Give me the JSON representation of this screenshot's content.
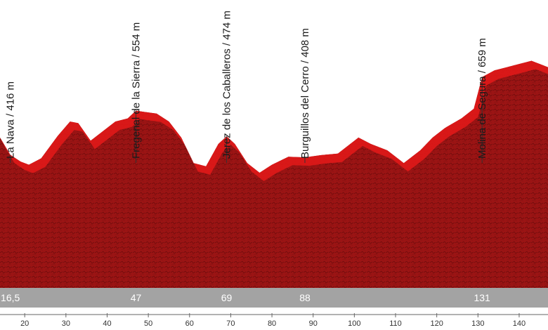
{
  "colors": {
    "profile_body": "#9b1414",
    "profile_top": "#e01818",
    "profile_dark": "#5e0a0a",
    "distance_bar": "#a3a3a3",
    "distance_text": "#ffffff",
    "marker_line": "#333333",
    "text": "#1a1a1a"
  },
  "chart_data": {
    "type": "area",
    "title": "",
    "xlabel": "",
    "ylabel": "",
    "xlim": [
      14,
      147
    ],
    "ylim": [
      0,
      900
    ],
    "x_ticks": [
      20,
      30,
      40,
      50,
      60,
      70,
      80,
      90,
      100,
      110,
      120,
      130,
      140
    ],
    "x": [
      14,
      16.5,
      19,
      21,
      24,
      28,
      31,
      33,
      36,
      39,
      42,
      45,
      47,
      49,
      52,
      55,
      58,
      61,
      64,
      67,
      69,
      71,
      74,
      77,
      80,
      84,
      88,
      92,
      96,
      98,
      101,
      104,
      108,
      112,
      116,
      119,
      122,
      126,
      129,
      131,
      134,
      137,
      140,
      143,
      145,
      147
    ],
    "y": [
      470,
      416,
      395,
      385,
      405,
      475,
      520,
      515,
      460,
      490,
      520,
      530,
      554,
      550,
      545,
      520,
      470,
      390,
      380,
      450,
      474,
      450,
      390,
      360,
      385,
      410,
      408,
      415,
      420,
      440,
      470,
      450,
      430,
      390,
      430,
      470,
      500,
      530,
      560,
      659,
      680,
      690,
      700,
      710,
      700,
      690
    ],
    "waypoints": [
      {
        "name": "La Nava / 416 m",
        "km": 16.5,
        "km_label": "16,5",
        "elevation": 416
      },
      {
        "name": "Fregenal de la Sierra / 554 m",
        "km": 47,
        "km_label": "47",
        "elevation": 554
      },
      {
        "name": "Jerez de los Caballeros / 474 m",
        "km": 69,
        "km_label": "69",
        "elevation": 474
      },
      {
        "name": "Burguillos del Cerro / 408 m",
        "km": 88,
        "km_label": "88",
        "elevation": 408
      },
      {
        "name": "Molina de Segura / 659 m",
        "km": 131,
        "km_label": "131",
        "elevation": 659
      }
    ]
  }
}
